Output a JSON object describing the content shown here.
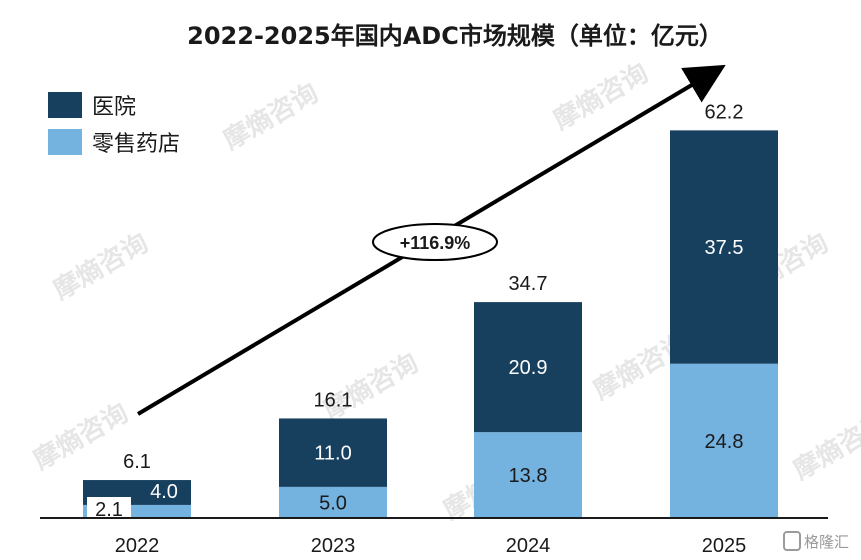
{
  "chart_data": {
    "type": "bar",
    "stacked": true,
    "title": "2022-2025年国内ADC市场规模（单位：亿元）",
    "categories": [
      "2022",
      "2023",
      "2024",
      "2025"
    ],
    "series": [
      {
        "name": "医院",
        "values": [
          4.0,
          11.0,
          20.9,
          37.5
        ],
        "color": "#17405f"
      },
      {
        "name": "零售药店",
        "values": [
          2.1,
          5.0,
          13.8,
          24.8
        ],
        "color": "#74b2e0"
      }
    ],
    "totals": [
      6.1,
      16.1,
      34.7,
      62.2
    ],
    "ylim": [
      0,
      70
    ],
    "legend_position": "top-left",
    "grid": false,
    "annotation": {
      "text": "+116.9%",
      "type": "growth-arrow"
    }
  },
  "watermark": {
    "text": "摩熵咨询",
    "color": "#e6e6e6"
  },
  "corner_logo": {
    "text": "格隆汇",
    "icon": "gelonghui-logo-icon"
  }
}
